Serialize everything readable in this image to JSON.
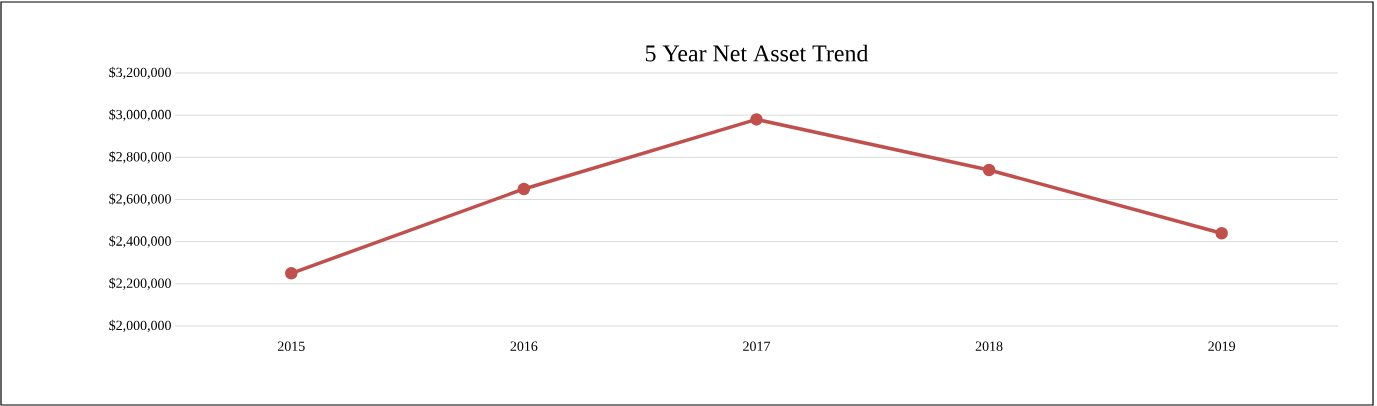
{
  "chart_data": {
    "type": "line",
    "title": "5 Year Net Asset Trend",
    "categories": [
      "2015",
      "2016",
      "2017",
      "2018",
      "2019"
    ],
    "series": [
      {
        "color": "#c0504d",
        "values": [
          2250000,
          2650000,
          2980000,
          2740000,
          2440000
        ]
      }
    ],
    "ylim": [
      2000000,
      3200000
    ],
    "yticks": [
      {
        "value": 2000000,
        "label": "$2,000,000"
      },
      {
        "value": 2200000,
        "label": "$2,200,000"
      },
      {
        "value": 2400000,
        "label": "$2,400,000"
      },
      {
        "value": 2600000,
        "label": "$2,600,000"
      },
      {
        "value": 2800000,
        "label": "$2,800,000"
      },
      {
        "value": 3000000,
        "label": "$3,000,000"
      },
      {
        "value": 3200000,
        "label": "$3,200,000"
      }
    ],
    "grid": "y",
    "marker": "circle",
    "line_style": "solid"
  }
}
